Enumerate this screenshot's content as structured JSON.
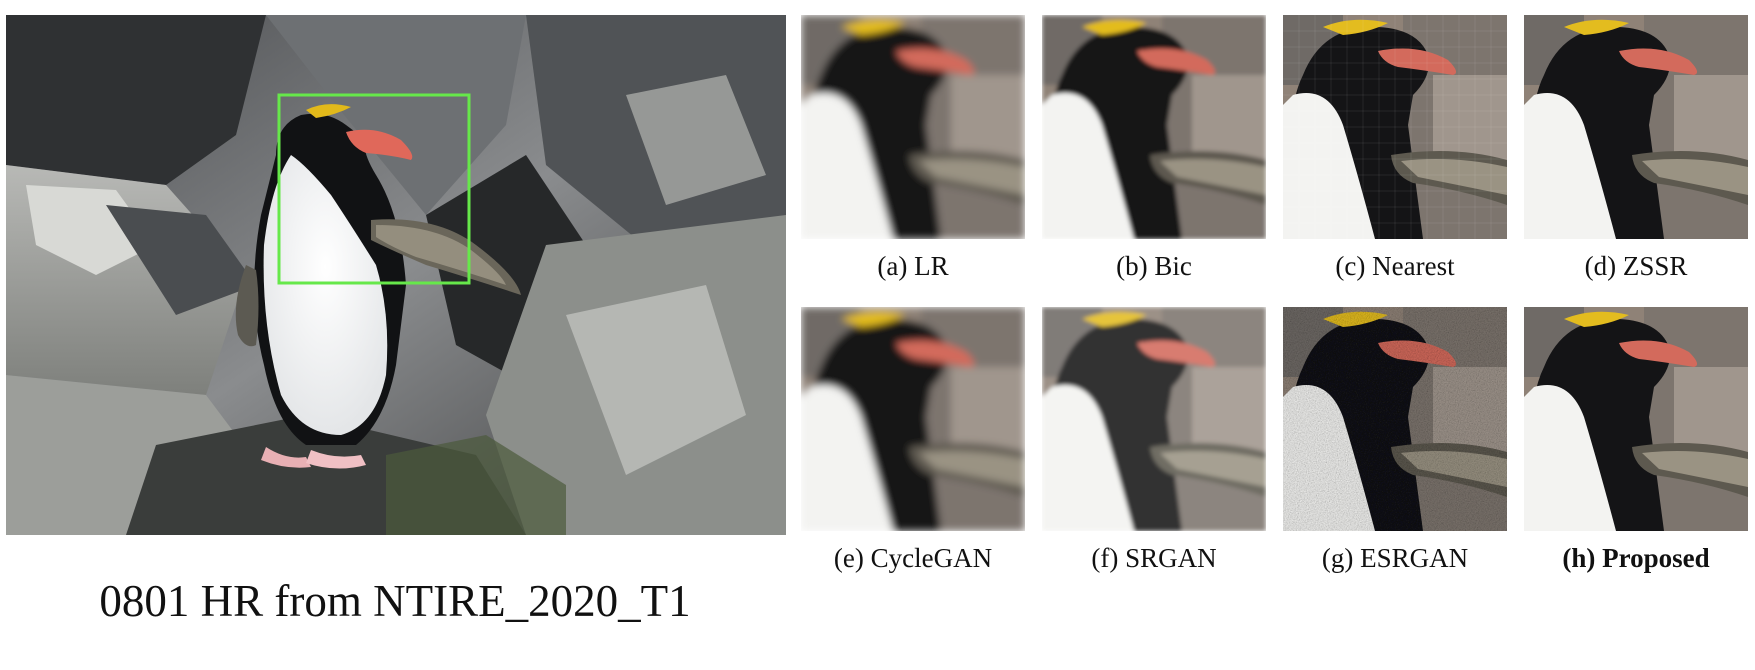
{
  "figure": {
    "main_caption": "0801 HR from NTIRE_2020_T1",
    "highlight_color": "#66e84a",
    "panels": [
      {
        "caption": "(a) LR",
        "bold": false,
        "style": "blur"
      },
      {
        "caption": "(b) Bic",
        "bold": false,
        "style": "soft"
      },
      {
        "caption": "(c) Nearest",
        "bold": false,
        "style": "pixel"
      },
      {
        "caption": "(d) ZSSR",
        "bold": false,
        "style": "sharp"
      },
      {
        "caption": "(e) CycleGAN",
        "bold": false,
        "style": "blur"
      },
      {
        "caption": "(f) SRGAN",
        "bold": false,
        "style": "bright"
      },
      {
        "caption": "(g) ESRGAN",
        "bold": false,
        "style": "noisy"
      },
      {
        "caption": "(h) Proposed",
        "bold": true,
        "style": "sharp"
      }
    ]
  }
}
